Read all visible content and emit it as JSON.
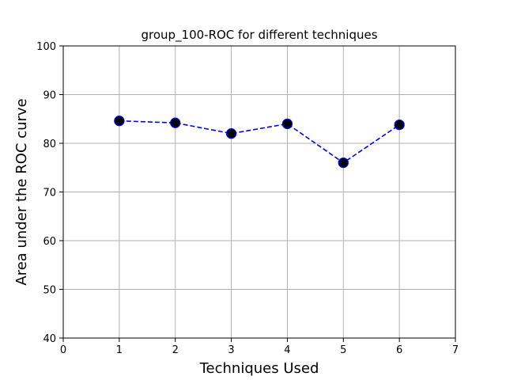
{
  "chart_data": {
    "type": "line",
    "title": "group_100-ROC for different techniques",
    "xlabel": "Techniques Used",
    "ylabel": "Area under the ROC curve",
    "xlim": [
      0,
      7
    ],
    "ylim": [
      40,
      100
    ],
    "xticks": [
      "0",
      "1",
      "2",
      "3",
      "4",
      "5",
      "6",
      "7"
    ],
    "yticks": [
      "40",
      "50",
      "60",
      "70",
      "80",
      "90",
      "100"
    ],
    "grid": true,
    "series": [
      {
        "x": [
          1,
          2,
          3,
          4,
          5,
          6
        ],
        "y": [
          84.6,
          84.2,
          82.0,
          84.0,
          76.0,
          83.8
        ],
        "color": "#0000ff",
        "linestyle": "dashed",
        "marker_color": "#000000"
      }
    ]
  }
}
